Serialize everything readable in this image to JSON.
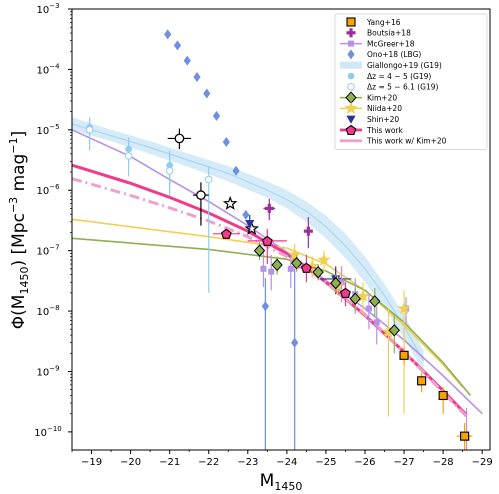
{
  "chart_data": {
    "type": "scatter",
    "xlabel_main": "M",
    "xlabel_sub": "1450",
    "ylabel_main": "Φ(M",
    "ylabel_sub": "1450",
    "ylabel_units": ") [Mpc",
    "ylabel_sup": "−3",
    "ylabel_end": " mag",
    "ylabel_sup2": "−1",
    "ylabel_close": "]",
    "x_range": [
      -18.5,
      -29.2
    ],
    "y_range_log10": [
      -10.3,
      -3
    ],
    "y_scale": "log",
    "x_ticks": [
      -19,
      -20,
      -21,
      -22,
      -23,
      -24,
      -25,
      -26,
      -27,
      -28,
      -29
    ],
    "x_tick_labels": [
      "−19",
      "−20",
      "−21",
      "−22",
      "−23",
      "−24",
      "−25",
      "−26",
      "−27",
      "−28",
      "−29"
    ],
    "y_ticks": [
      -10,
      -9,
      -8,
      -7,
      -6,
      -5,
      -4,
      -3
    ],
    "y_tick_labels": [
      "10",
      "10",
      "10",
      "10",
      "10",
      "10",
      "10",
      "10"
    ],
    "y_tick_exponents": [
      "−10",
      "−9",
      "−8",
      "−7",
      "−6",
      "−5",
      "−4",
      "−3"
    ],
    "legend_position": "top-right",
    "legend": [
      {
        "label": "Yang+16",
        "color": "#f7a200",
        "marker": "square",
        "edge": "#000000"
      },
      {
        "label": "Boutsia+18",
        "color": "#9b2f9b",
        "marker": "plus"
      },
      {
        "label": "McGreer+18",
        "color": "#b392e8",
        "marker": "square-line"
      },
      {
        "label": "Ono+18 (LBG)",
        "color": "#6f8fe0",
        "marker": "diamond"
      },
      {
        "label": "Giallongo+19 (G19)",
        "color": "#cfe8f7",
        "marker": "band"
      },
      {
        "label": "Δz = 4 − 5 (G19)",
        "color": "#8fcdf0",
        "marker": "circle"
      },
      {
        "label": "Δz = 5 − 6.1 (G19)",
        "color": "#8fcdf0",
        "marker": "open-circle"
      },
      {
        "label": "Kim+20",
        "color": "#8fb050",
        "marker": "diamond-line",
        "edge": "#000000"
      },
      {
        "label": "Niida+20",
        "color": "#f0d050",
        "marker": "star-line"
      },
      {
        "label": "Shin+20",
        "color": "#2e2f9b",
        "marker": "triangle-down"
      },
      {
        "label": "This work",
        "color": "#f03a8a",
        "marker": "pentagon-line",
        "edge": "#000000"
      },
      {
        "label": "This work w/ Kim+20",
        "color": "#f0a0cc",
        "marker": "dashdot-line"
      }
    ],
    "series": [
      {
        "name": "Giallongo+19 (G19)",
        "type": "band",
        "color": "#cfe8f7",
        "x": [
          -18.5,
          -19.5,
          -20.5,
          -21.5,
          -22.5,
          -23.5,
          -24,
          -24.5,
          -25,
          -25.5,
          -26,
          -26.5,
          -27,
          -27.5
        ],
        "y_low": [
          1e-05,
          6.5e-06,
          4e-06,
          2.4e-06,
          1.4e-06,
          7.5e-07,
          5e-07,
          3e-07,
          1.6e-07,
          7.5e-08,
          3e-08,
          1.1e-08,
          3.5e-09,
          1e-09
        ],
        "y_high": [
          1.6e-05,
          1e-05,
          6.5e-06,
          4e-06,
          2.5e-06,
          1.4e-06,
          1e-06,
          6.5e-07,
          3.8e-07,
          1.9e-07,
          8e-08,
          2.8e-08,
          8.5e-09,
          2.2e-09
        ]
      },
      {
        "name": "Giallongo+19 (G19) fit",
        "type": "line",
        "color": "#a9d7f3",
        "x": [
          -18.5,
          -19.5,
          -20.5,
          -21.5,
          -22.5,
          -23.5,
          -24,
          -24.5,
          -25,
          -25.5,
          -26,
          -26.5,
          -27,
          -27.5
        ],
        "y": [
          1.25e-05,
          8e-06,
          5.1e-06,
          3.1e-06,
          1.9e-06,
          1e-06,
          7e-07,
          4.5e-07,
          2.5e-07,
          1.2e-07,
          5e-08,
          1.8e-08,
          5.5e-09,
          1.5e-09
        ]
      },
      {
        "name": "McGreer+18",
        "type": "line",
        "color": "#b392e8",
        "x": [
          -18.5,
          -20,
          -21,
          -22,
          -23,
          -24,
          -25,
          -26,
          -27,
          -28,
          -29
        ],
        "y": [
          1e-05,
          3.6e-06,
          1.5e-06,
          6.5e-07,
          2.6e-07,
          9.5e-08,
          3.2e-08,
          1.1e-08,
          3.3e-09,
          8.5e-10,
          2e-10
        ]
      },
      {
        "name": "Niida+20",
        "type": "line",
        "color": "#f0d050",
        "x": [
          -18.5,
          -22,
          -24,
          -25,
          -26,
          -27,
          -28,
          -28.5
        ],
        "y": [
          3.3e-07,
          1.7e-07,
          1.1e-07,
          6e-08,
          2.2e-08,
          5.8e-09,
          1.3e-09,
          5.5e-10
        ]
      },
      {
        "name": "Kim+20",
        "type": "line",
        "color": "#8fb050",
        "x": [
          -18.5,
          -22,
          -24,
          -25,
          -26,
          -27,
          -28,
          -28.7
        ],
        "y": [
          1.6e-07,
          1.05e-07,
          7.2e-08,
          4.6e-08,
          2.2e-08,
          6.5e-09,
          1.4e-09,
          4e-10
        ]
      },
      {
        "name": "This work",
        "type": "line",
        "color": "#f03a8a",
        "x": [
          -18.5,
          -20,
          -21,
          -22,
          -23,
          -24,
          -25,
          -26,
          -27,
          -28,
          -28.6
        ],
        "y": [
          2.6e-06,
          1.3e-06,
          7.6e-07,
          4.2e-07,
          2.1e-07,
          8.8e-08,
          3e-08,
          8.5e-09,
          2.1e-09,
          4.8e-10,
          1.9e-10
        ]
      },
      {
        "name": "This work w/ Kim+20",
        "type": "dashdot",
        "color": "#f0a0cc",
        "x": [
          -18.5,
          -20,
          -21,
          -22,
          -23,
          -24,
          -25,
          -26,
          -27,
          -28,
          -28.6
        ],
        "y": [
          1.55e-06,
          8.2e-07,
          5.1e-07,
          3.1e-07,
          1.7e-07,
          8e-08,
          3e-08,
          8.8e-09,
          2.1e-09,
          4.5e-10,
          1.8e-10
        ]
      },
      {
        "name": "Ono+18 (LBG)",
        "type": "points",
        "marker": "diamond",
        "color": "#6f8fe0",
        "points": [
          {
            "x": -20.95,
            "y": 0.00038
          },
          {
            "x": -21.2,
            "y": 0.00025
          },
          {
            "x": -21.45,
            "y": 0.00014
          },
          {
            "x": -21.7,
            "y": 7.5e-05
          },
          {
            "x": -21.95,
            "y": 4e-05
          },
          {
            "x": -22.2,
            "y": 1.7e-05
          },
          {
            "x": -22.45,
            "y": 6.3e-06
          },
          {
            "x": -22.7,
            "y": 2.1e-06
          },
          {
            "x": -22.95,
            "y": 3.9e-07
          },
          {
            "x": -23.45,
            "y": 1.2e-08,
            "ylo": 1e-12,
            "yhi": 3.5e-08
          },
          {
            "x": -24.2,
            "y": 3e-09,
            "ylo": 1e-12,
            "yhi": 7.5e-08
          }
        ]
      },
      {
        "name": "Δz = 4 − 5 (G19)",
        "type": "points",
        "marker": "circle",
        "color": "#8fcdf0",
        "points": [
          {
            "x": -18.95,
            "y": 1.1e-05,
            "ylo": 7e-06,
            "yhi": 1.6e-05
          },
          {
            "x": -19.95,
            "y": 4.8e-06,
            "ylo": 2.8e-06,
            "yhi": 7.5e-06
          },
          {
            "x": -21.0,
            "y": 2.6e-06,
            "ylo": 1.2e-06,
            "yhi": 4.5e-06
          }
        ]
      },
      {
        "name": "Δz = 5 − 6.1 (G19)",
        "type": "points",
        "marker": "open-circle",
        "color": "#8fcdf0",
        "points": [
          {
            "x": -18.95,
            "y": 1e-05,
            "ylo": 4.5e-06,
            "yhi": 1.6e-05
          },
          {
            "x": -19.95,
            "y": 3.7e-06,
            "ylo": 1.7e-06,
            "yhi": 6.5e-06
          },
          {
            "x": -21.0,
            "y": 2.1e-06,
            "ylo": 8e-07,
            "yhi": 4e-06
          },
          {
            "x": -22.0,
            "y": 1.5e-06,
            "ylo": 2e-08,
            "yhi": 2.5e-06
          }
        ]
      },
      {
        "name": "Open circles",
        "type": "points",
        "marker": "open-circle-black",
        "color": "#000000",
        "points": [
          {
            "x": -21.25,
            "y": 7.2e-06,
            "ylo": 4.8e-06,
            "yhi": 1.05e-05,
            "xerr": 0.3
          },
          {
            "x": -21.8,
            "y": 8.3e-07,
            "ylo": 2.6e-07,
            "yhi": 1.35e-06,
            "xerr": 0.2
          }
        ]
      },
      {
        "name": "Open stars",
        "type": "points",
        "marker": "open-star",
        "color": "#000000",
        "points": [
          {
            "x": -22.55,
            "y": 6e-07
          },
          {
            "x": -23.1,
            "y": 2.3e-07
          }
        ]
      },
      {
        "name": "Boutsia+18",
        "type": "points",
        "marker": "plus",
        "color": "#9b2f9b",
        "points": [
          {
            "x": -23.55,
            "y": 5e-07,
            "ylo": 3.2e-07,
            "yhi": 7.2e-07,
            "xerr": 0.15
          },
          {
            "x": -24.55,
            "y": 2.1e-07,
            "ylo": 1.1e-07,
            "yhi": 3.6e-07,
            "xerr": 0.1
          }
        ]
      },
      {
        "name": "Shin+20",
        "type": "points",
        "marker": "triangle-down",
        "color": "#2e2f9b",
        "points": [
          {
            "x": -23.05,
            "y": 2.8e-07,
            "ylo": 2e-07,
            "yhi": 3.9e-07
          },
          {
            "x": -25.25,
            "y": 3.4e-08,
            "ylo": 1.9e-08,
            "yhi": 5.5e-08,
            "xerr": 0.4
          }
        ]
      },
      {
        "name": "McGreer+18 points",
        "type": "points",
        "marker": "square-small",
        "color": "#b392e8",
        "points": [
          {
            "x": -23.4,
            "y": 5e-08,
            "ylo": 2.5e-08,
            "yhi": 1e-07
          },
          {
            "x": -23.6,
            "y": 4.5e-08,
            "ylo": 2.2e-08,
            "yhi": 8.5e-08
          },
          {
            "x": -24.1,
            "y": 5e-08,
            "ylo": 2.4e-08,
            "yhi": 9e-08
          },
          {
            "x": -25.4,
            "y": 3e-08,
            "ylo": 1.4e-08,
            "yhi": 5.5e-08
          },
          {
            "x": -25.75,
            "y": 1.9e-08,
            "ylo": 9e-09,
            "yhi": 3.5e-08
          },
          {
            "x": -26.1,
            "y": 1.1e-08,
            "ylo": 5e-09,
            "yhi": 2e-08
          },
          {
            "x": -26.3,
            "y": 6.5e-09,
            "ylo": 2.8e-09,
            "yhi": 1.2e-08
          },
          {
            "x": -27.05,
            "y": 1.1e-08,
            "ylo": 6e-09,
            "yhi": 1.7e-08
          },
          {
            "x": -28.6,
            "y": 8e-11,
            "ylo": 4e-11,
            "yhi": 2.5e-10
          }
        ]
      },
      {
        "name": "Niida+20 points",
        "type": "points",
        "marker": "star",
        "color": "#f0d050",
        "points": [
          {
            "x": -24.2,
            "y": 8.5e-08,
            "ylo": 5e-08,
            "yhi": 1.3e-07
          },
          {
            "x": -24.65,
            "y": 5.5e-08,
            "ylo": 3.5e-08,
            "yhi": 8e-08
          },
          {
            "x": -24.95,
            "y": 7e-08,
            "ylo": 4.5e-08,
            "yhi": 1e-07
          },
          {
            "x": -25.95,
            "y": 1.75e-08,
            "ylo": 9e-09,
            "yhi": 3e-08
          },
          {
            "x": -26.6,
            "y": 4.5e-09,
            "ylo": 1.8e-10,
            "yhi": 1.1e-08
          },
          {
            "x": -27.0,
            "y": 1.1e-08,
            "ylo": 2e-10,
            "yhi": 2.2e-08
          },
          {
            "x": -25.3,
            "y": 2.7e-08,
            "ylo": 1.8e-08,
            "yhi": 3.8e-08
          }
        ]
      },
      {
        "name": "Kim+20",
        "type": "points",
        "marker": "diamond-edge",
        "color": "#8fb050",
        "points": [
          {
            "x": -23.3,
            "y": 1e-07,
            "ylo": 7e-08,
            "yhi": 1.4e-07
          },
          {
            "x": -23.75,
            "y": 5.8e-08,
            "ylo": 4e-08,
            "yhi": 8e-08
          },
          {
            "x": -24.25,
            "y": 6.2e-08,
            "ylo": 4.5e-08,
            "yhi": 8.5e-08
          },
          {
            "x": -24.8,
            "y": 4.4e-08,
            "ylo": 3.2e-08,
            "yhi": 6e-08
          },
          {
            "x": -25.25,
            "y": 2.9e-08,
            "ylo": 2e-08,
            "yhi": 4e-08
          },
          {
            "x": -25.75,
            "y": 1.6e-08,
            "ylo": 1e-08,
            "yhi": 2.4e-08
          },
          {
            "x": -26.25,
            "y": 1.45e-08,
            "ylo": 8e-09,
            "yhi": 2.4e-08
          },
          {
            "x": -26.75,
            "y": 4.8e-09,
            "ylo": 2e-09,
            "yhi": 9e-09
          }
        ]
      },
      {
        "name": "This work",
        "type": "points",
        "marker": "pentagon",
        "color": "#f03a8a",
        "points": [
          {
            "x": -22.45,
            "y": 1.9e-07,
            "ylo": 1.6e-07,
            "yhi": 2.3e-07,
            "xerr": 0.35
          },
          {
            "x": -23.5,
            "y": 1.45e-07,
            "ylo": 6e-08,
            "yhi": 2.3e-07,
            "xerr": 0.5
          },
          {
            "x": -24.5,
            "y": 5.2e-08,
            "ylo": 3e-08,
            "yhi": 8.5e-08,
            "xerr": 0.25
          },
          {
            "x": -25.5,
            "y": 2e-08,
            "ylo": 1.2e-08,
            "yhi": 3e-08
          }
        ]
      },
      {
        "name": "Yang+16",
        "type": "points",
        "marker": "square-edge",
        "color": "#f7a200",
        "points": [
          {
            "x": -27.0,
            "y": 1.85e-09,
            "ylo": 1.3e-09,
            "yhi": 2.5e-09
          },
          {
            "x": -27.45,
            "y": 7e-10,
            "ylo": 4.5e-10,
            "yhi": 9.5e-10
          },
          {
            "x": -28.0,
            "y": 4e-10,
            "ylo": 2e-10,
            "yhi": 5.5e-10
          },
          {
            "x": -28.55,
            "y": 8.5e-11,
            "ylo": 4.5e-11,
            "yhi": 1.4e-10,
            "xerr": 0.2
          }
        ]
      }
    ]
  }
}
